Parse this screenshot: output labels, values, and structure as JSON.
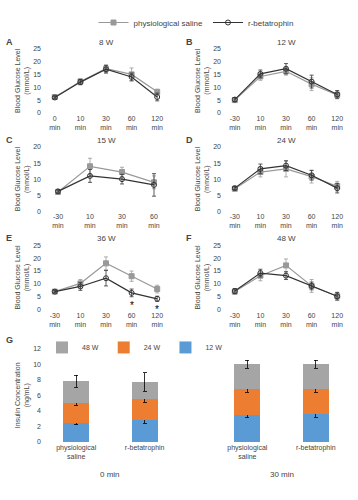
{
  "chart_data": [
    {
      "type": "line",
      "title": "8 W",
      "panel_label": "A",
      "ylabel": "Blood Glucose Level\n(mmol/L)",
      "categories": [
        "0 min",
        "10 min",
        "30 min",
        "60 min",
        "120 min"
      ],
      "ylim": [
        0,
        25
      ],
      "yticks": [
        0,
        5,
        10,
        15,
        20,
        25
      ],
      "grid": false,
      "legend": "top",
      "series": [
        {
          "name": "physiological saline",
          "color": "#999999",
          "marker": "square",
          "values": [
            6.2,
            12.2,
            17.2,
            15.0,
            8.2
          ],
          "errors": [
            0.5,
            1.2,
            1.5,
            2.5,
            1.0
          ]
        },
        {
          "name": "r-betatrophin",
          "color": "#333333",
          "marker": "circle-open",
          "values": [
            6.0,
            12.0,
            17.0,
            14.0,
            6.2
          ],
          "errors": [
            0.5,
            1.0,
            1.5,
            1.5,
            1.5
          ]
        }
      ],
      "annotations": []
    },
    {
      "type": "line",
      "title": "12 W",
      "panel_label": "B",
      "ylabel": "Blood Glucose Level\n(mmol/L)",
      "categories": [
        "-30 min",
        "10 min",
        "30 min",
        "60 min",
        "120 min"
      ],
      "ylim": [
        0,
        25
      ],
      "yticks": [
        0,
        5,
        10,
        15,
        20,
        25
      ],
      "grid": false,
      "series": [
        {
          "name": "physiological saline",
          "color": "#999999",
          "marker": "square",
          "values": [
            5.0,
            14.2,
            16.2,
            11.2,
            7.0
          ],
          "errors": [
            0.8,
            1.5,
            1.5,
            2.5,
            1.5
          ]
        },
        {
          "name": "r-betatrophin",
          "color": "#333333",
          "marker": "circle-open",
          "values": [
            5.2,
            15.2,
            17.2,
            12.2,
            7.2
          ],
          "errors": [
            0.8,
            1.5,
            2.0,
            2.5,
            1.5
          ]
        }
      ],
      "annotations": []
    },
    {
      "type": "line",
      "title": "15 W",
      "panel_label": "C",
      "ylabel": "Blood Glucose Level\n(mmol/L)",
      "categories": [
        "-30 min",
        "10 min",
        "30 min",
        "60 min"
      ],
      "ylim": [
        0,
        20
      ],
      "yticks": [
        0,
        5,
        10,
        15,
        20
      ],
      "grid": false,
      "series": [
        {
          "name": "physiological saline",
          "color": "#999999",
          "marker": "square",
          "values": [
            6.0,
            14.0,
            12.2,
            9.0
          ],
          "errors": [
            0.5,
            2.5,
            1.5,
            2.0
          ]
        },
        {
          "name": "r-betatrophin",
          "color": "#333333",
          "marker": "circle-open",
          "values": [
            6.2,
            11.0,
            10.0,
            8.2
          ],
          "errors": [
            0.5,
            2.0,
            1.5,
            3.5
          ]
        }
      ],
      "annotations": []
    },
    {
      "type": "line",
      "title": "24 W",
      "panel_label": "D",
      "ylabel": "Blood Glucose Level\n(mmol/L)",
      "categories": [
        "-30 min",
        "10 min",
        "30 min",
        "60 min",
        "120 min"
      ],
      "ylim": [
        0,
        20
      ],
      "yticks": [
        0,
        5,
        10,
        15,
        20
      ],
      "grid": false,
      "series": [
        {
          "name": "physiological saline",
          "color": "#999999",
          "marker": "square",
          "values": [
            7.0,
            12.2,
            13.2,
            10.8,
            7.8
          ],
          "errors": [
            0.5,
            1.5,
            2.5,
            2.0,
            1.5
          ]
        },
        {
          "name": "r-betatrophin",
          "color": "#333333",
          "marker": "circle-open",
          "values": [
            7.2,
            13.2,
            14.2,
            11.2,
            7.2
          ],
          "errors": [
            0.5,
            1.5,
            1.5,
            1.5,
            1.5
          ]
        }
      ],
      "annotations": []
    },
    {
      "type": "line",
      "title": "36 W",
      "panel_label": "E",
      "ylabel": "Blood Glucose Level\n(mmol/L)",
      "categories": [
        "-30 min",
        "10 min",
        "30 min",
        "60 min",
        "120 min"
      ],
      "ylim": [
        0,
        25
      ],
      "yticks": [
        0,
        5,
        10,
        15,
        20,
        25
      ],
      "grid": false,
      "series": [
        {
          "name": "physiological saline",
          "color": "#999999",
          "marker": "square",
          "values": [
            7.0,
            10.2,
            18.0,
            13.0,
            8.0
          ],
          "errors": [
            0.5,
            1.5,
            2.5,
            2.0,
            1.5
          ]
        },
        {
          "name": "r-betatrophin",
          "color": "#333333",
          "marker": "circle-open",
          "values": [
            7.0,
            9.0,
            12.2,
            6.5,
            4.2
          ],
          "errors": [
            0.5,
            1.5,
            3.0,
            1.5,
            1.0
          ]
        }
      ],
      "annotations": [
        {
          "text": "*",
          "category": "60 min"
        },
        {
          "text": "*",
          "category": "120 min"
        }
      ]
    },
    {
      "type": "line",
      "title": "48 W",
      "panel_label": "F",
      "ylabel": "Blood Glucose Level\n(mmol/L)",
      "categories": [
        "-30 min",
        "10 min",
        "30 min",
        "60 min",
        "120 min"
      ],
      "ylim": [
        0,
        25
      ],
      "yticks": [
        0,
        5,
        10,
        15,
        20,
        25
      ],
      "grid": false,
      "series": [
        {
          "name": "physiological saline",
          "color": "#999999",
          "marker": "square",
          "values": [
            7.0,
            13.2,
            17.2,
            9.2,
            5.2
          ],
          "errors": [
            1.0,
            2.0,
            2.5,
            2.5,
            1.5
          ]
        },
        {
          "name": "r-betatrophin",
          "color": "#333333",
          "marker": "circle-open",
          "values": [
            7.2,
            14.2,
            13.2,
            9.2,
            5.2
          ],
          "errors": [
            1.0,
            1.5,
            1.5,
            1.5,
            1.5
          ]
        }
      ],
      "annotations": []
    },
    {
      "type": "bar",
      "stacked": true,
      "panel_label": "G",
      "ylabel": "Insulin Concentration (ng/mL)",
      "categories": [
        "physiological saline",
        "r-betatrophin",
        "physiological saline",
        "r-betatrophin"
      ],
      "category_groups": [
        "0 min",
        "0 min",
        "30 min",
        "30 min"
      ],
      "ylim": [
        0,
        12
      ],
      "yticks": [
        0,
        2,
        4,
        6,
        8,
        10,
        12
      ],
      "grid": false,
      "legend": "upper left",
      "series": [
        {
          "name": "12 W",
          "color": "#5b9bd5",
          "values": [
            2.5,
            2.8,
            3.5,
            3.6
          ],
          "errors": [
            0.3,
            0.4,
            0.4,
            0.4
          ]
        },
        {
          "name": "24 W",
          "color": "#ed7d31",
          "values": [
            2.5,
            2.7,
            3.3,
            3.2
          ],
          "errors": [
            0.3,
            0.4,
            0.4,
            0.4
          ]
        },
        {
          "name": "48 W",
          "color": "#a5a5a5",
          "values": [
            2.8,
            2.2,
            3.2,
            3.2
          ],
          "errors": [
            0.8,
            1.2,
            0.5,
            0.5
          ]
        }
      ]
    }
  ]
}
